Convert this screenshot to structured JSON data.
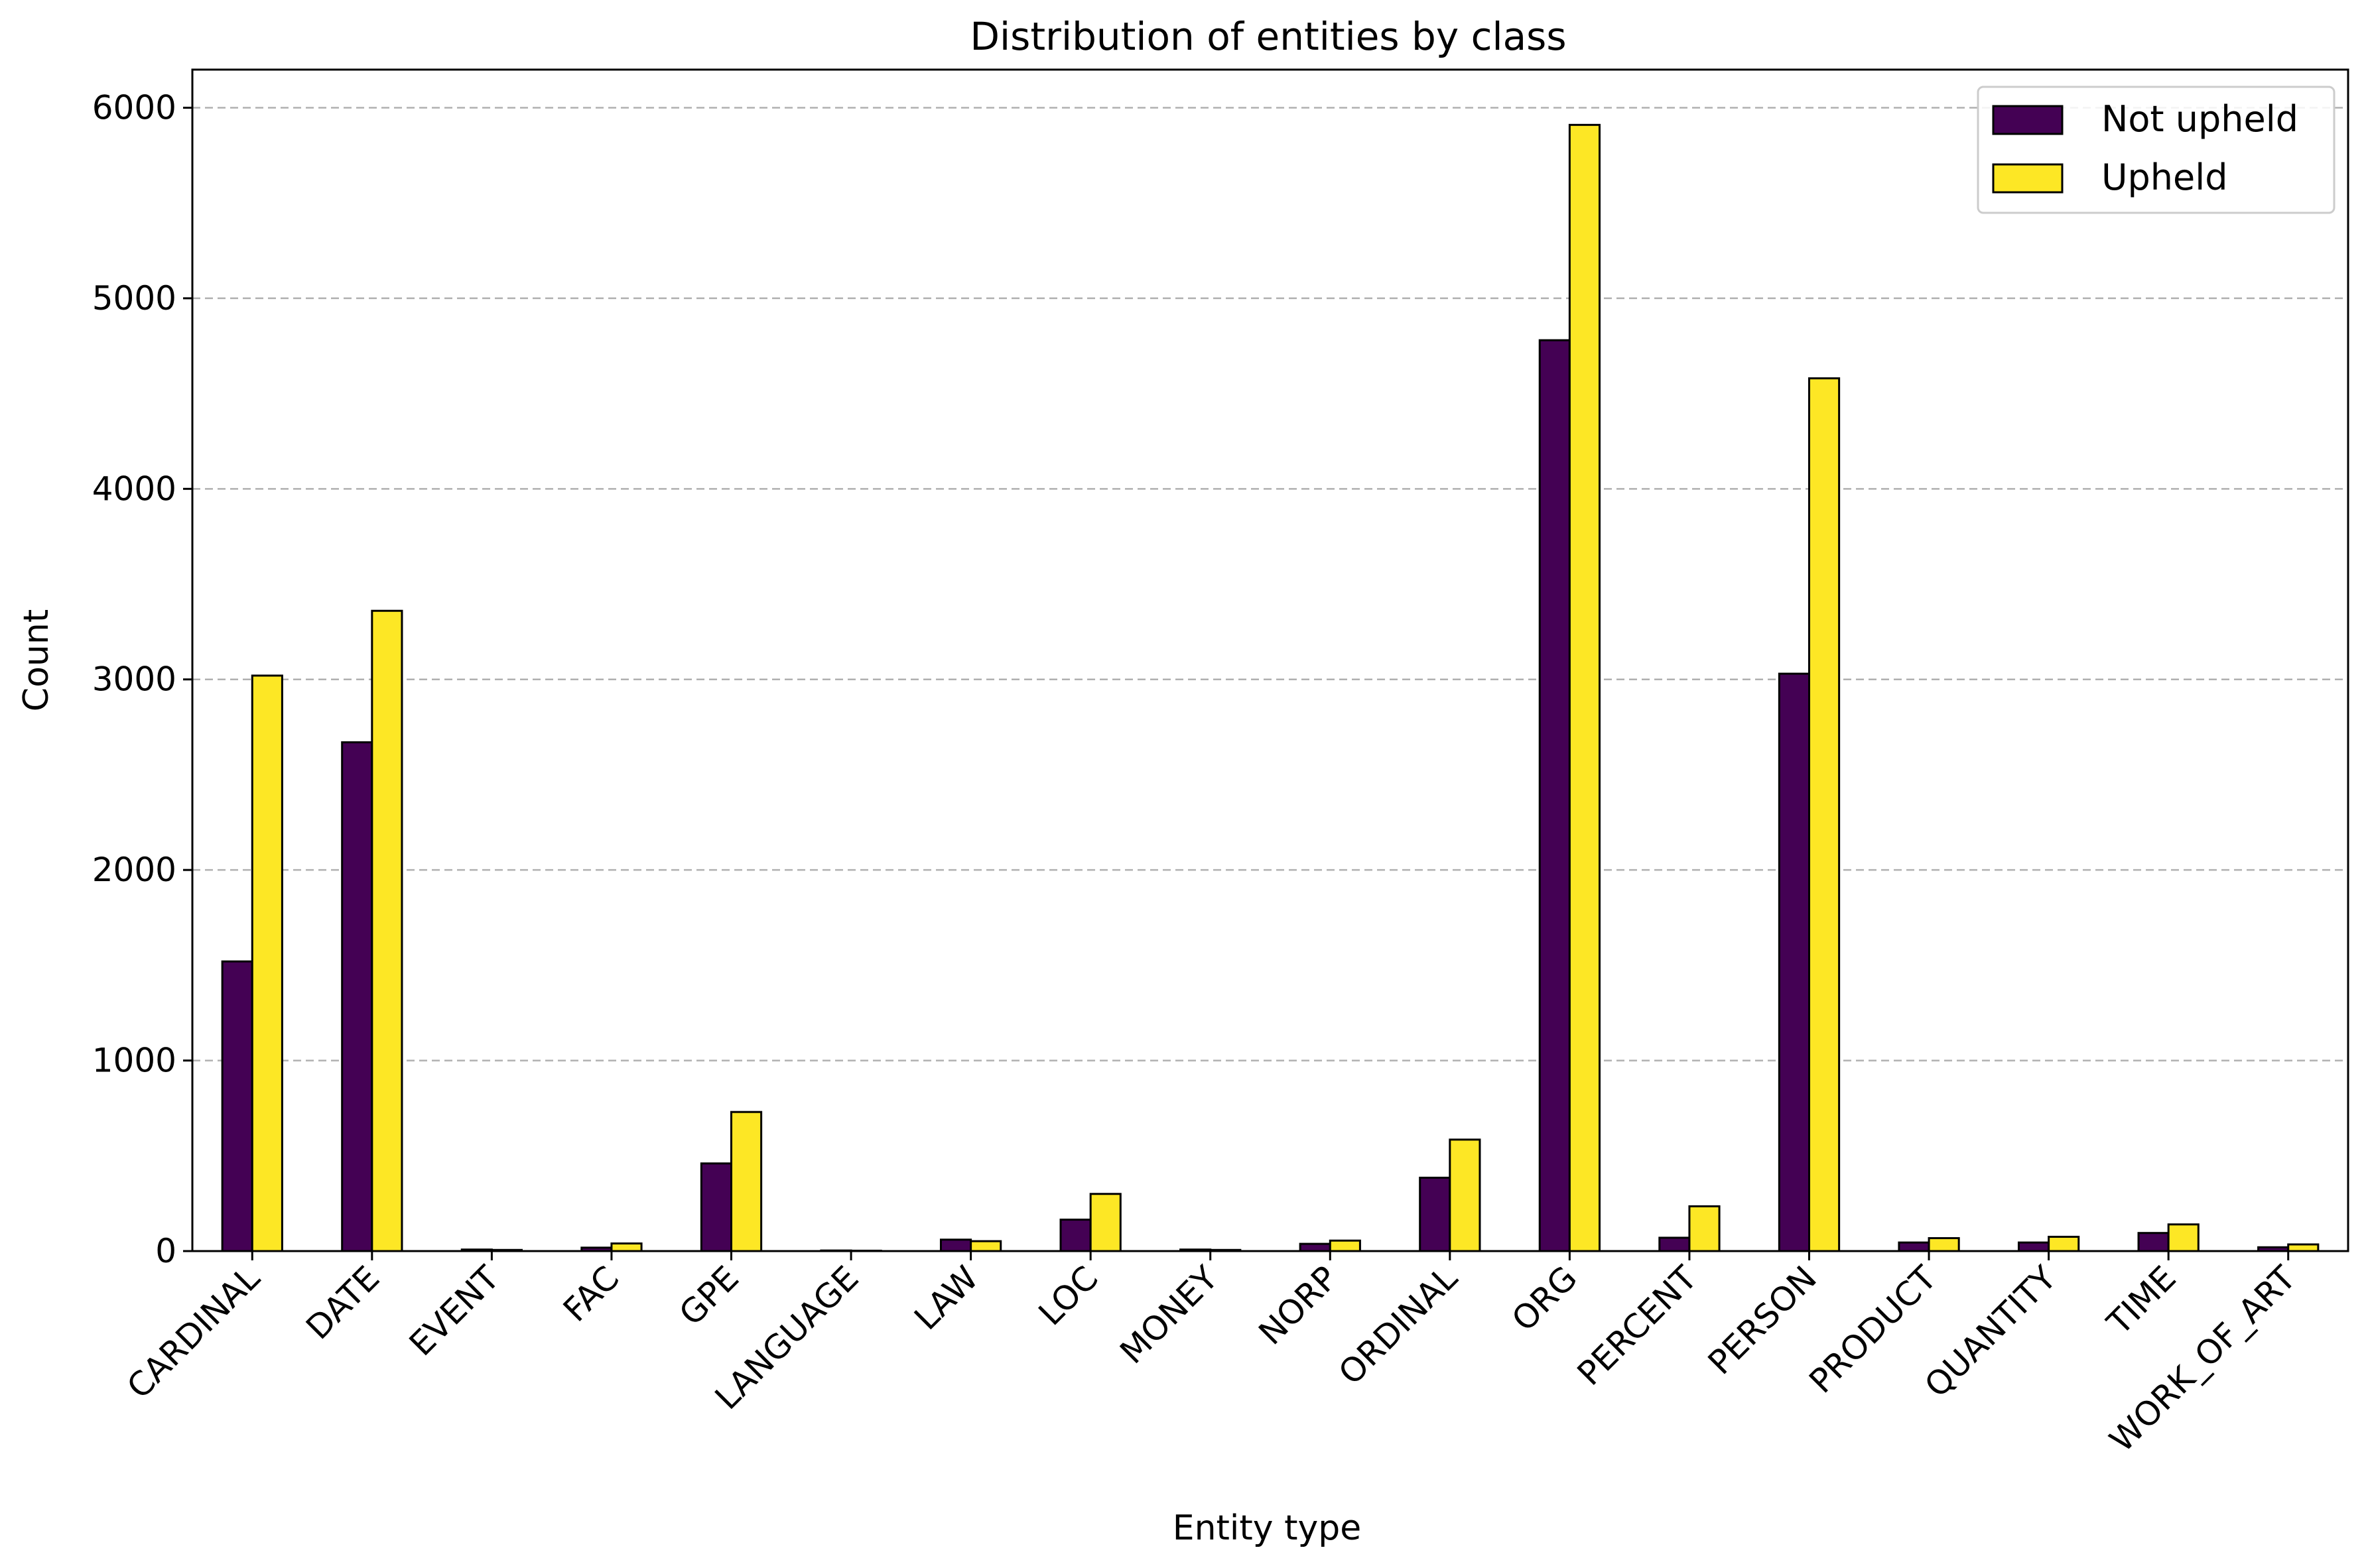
{
  "chart_data": {
    "type": "bar",
    "title": "Distribution of entities by class",
    "xlabel": "Entity type",
    "ylabel": "Count",
    "ylim": [
      0,
      6200
    ],
    "yticks": [
      0,
      1000,
      2000,
      3000,
      4000,
      5000,
      6000
    ],
    "grid": "y-dashed",
    "legend_position": "top-right",
    "categories": [
      "CARDINAL",
      "DATE",
      "EVENT",
      "FAC",
      "GPE",
      "LANGUAGE",
      "LAW",
      "LOC",
      "MONEY",
      "NORP",
      "ORDINAL",
      "ORG",
      "PERCENT",
      "PERSON",
      "PRODUCT",
      "QUANTITY",
      "TIME",
      "WORK_OF_ART"
    ],
    "series": [
      {
        "name": "Not upheld",
        "color": "#440154",
        "values": [
          1520,
          2670,
          8,
          18,
          460,
          3,
          60,
          165,
          8,
          38,
          385,
          4780,
          70,
          3030,
          45,
          45,
          95,
          20
        ]
      },
      {
        "name": "Upheld",
        "color": "#fde725",
        "values": [
          3020,
          3360,
          6,
          40,
          730,
          2,
          52,
          300,
          6,
          55,
          585,
          5910,
          235,
          4580,
          68,
          75,
          140,
          35
        ]
      }
    ]
  }
}
